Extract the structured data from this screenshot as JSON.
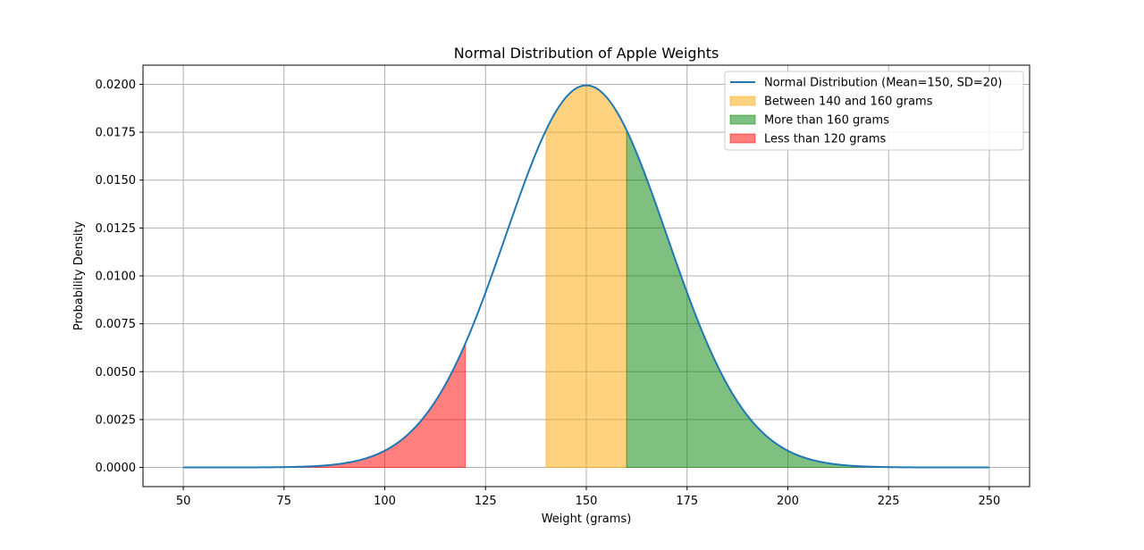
{
  "chart_data": {
    "type": "area",
    "title": "Normal Distribution of Apple Weights",
    "xlabel": "Weight (grams)",
    "ylabel": "Probability Density",
    "xlim": [
      40,
      260
    ],
    "ylim": [
      -0.001,
      0.021
    ],
    "x_ticks": [
      50,
      75,
      100,
      125,
      150,
      175,
      200,
      225,
      250
    ],
    "x_tick_labels": [
      "50",
      "75",
      "100",
      "125",
      "150",
      "175",
      "200",
      "225",
      "250"
    ],
    "y_ticks": [
      0.0,
      0.0025,
      0.005,
      0.0075,
      0.01,
      0.0125,
      0.015,
      0.0175,
      0.02
    ],
    "y_tick_labels": [
      "0.0000",
      "0.0025",
      "0.0050",
      "0.0075",
      "0.0100",
      "0.0125",
      "0.0150",
      "0.0175",
      "0.0200"
    ],
    "grid": true,
    "legend_position": "top-right",
    "distribution": {
      "mean": 150,
      "sd": 20,
      "x_range": [
        50,
        250
      ]
    },
    "series": [
      {
        "name": "Normal Distribution (Mean=150, SD=20)",
        "kind": "line",
        "color": "#1f77b4"
      }
    ],
    "shaded_regions": [
      {
        "name": "Between 140 and 160 grams",
        "from": 140,
        "to": 160,
        "color": "#ffa500",
        "opacity": 0.5
      },
      {
        "name": "More than 160 grams",
        "from": 160,
        "to": 250,
        "color": "#008000",
        "opacity": 0.5
      },
      {
        "name": "Less than 120 grams",
        "from": 50,
        "to": 120,
        "color": "#ff0000",
        "opacity": 0.5
      }
    ]
  }
}
